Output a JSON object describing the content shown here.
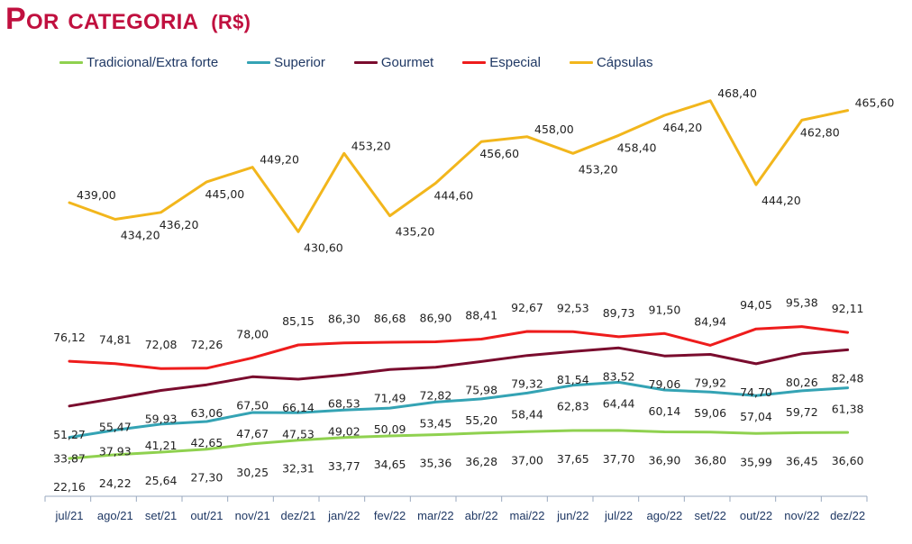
{
  "title": "Por categoria",
  "unit": "(R$)",
  "colors": {
    "title": "#c0103f",
    "axis": "#9aa9bf",
    "text": "#1f3864"
  },
  "chart_data": {
    "type": "line",
    "categories": [
      "jul/21",
      "ago/21",
      "set/21",
      "out/21",
      "nov/21",
      "dez/21",
      "jan/22",
      "fev/22",
      "mar/22",
      "abr/22",
      "mai/22",
      "jun/22",
      "jul/22",
      "ago/22",
      "set/22",
      "out/22",
      "nov/22",
      "dez/22"
    ],
    "legend_position": "top",
    "grid": false,
    "series": [
      {
        "name": "Tradicional/Extra forte",
        "color": "#8fd14f",
        "values": [
          22.16,
          24.22,
          25.64,
          27.3,
          30.25,
          32.31,
          33.77,
          34.65,
          35.36,
          36.28,
          37.0,
          37.65,
          37.7,
          36.9,
          36.8,
          35.99,
          36.45,
          36.6
        ],
        "labels": [
          "22,16",
          "24,22",
          "25,64",
          "27,30",
          "30,25",
          "32,31",
          "33,77",
          "34,65",
          "35,36",
          "36,28",
          "37,00",
          "37,65",
          "37,70",
          "36,90",
          "36,80",
          "35,99",
          "36,45",
          "36,60"
        ]
      },
      {
        "name": "Superior",
        "color": "#34a3b4",
        "values": [
          33.87,
          37.93,
          41.21,
          42.65,
          47.67,
          47.53,
          49.02,
          50.09,
          53.45,
          55.2,
          58.44,
          62.83,
          64.44,
          60.14,
          59.06,
          57.04,
          59.72,
          61.38
        ],
        "labels": [
          "33,87",
          "37,93",
          "41,21",
          "42,65",
          "47,67",
          "47,53",
          "49,02",
          "50,09",
          "53,45",
          "55,20",
          "58,44",
          "62,83",
          "64,44",
          "60,14",
          "59,06",
          "57,04",
          "59,72",
          "61,38"
        ]
      },
      {
        "name": "Gourmet",
        "color": "#7a0c2e",
        "values": [
          51.27,
          55.47,
          59.93,
          63.06,
          67.5,
          66.14,
          68.53,
          71.49,
          72.82,
          75.98,
          79.32,
          81.54,
          83.52,
          79.06,
          79.92,
          74.7,
          80.26,
          82.48
        ],
        "labels": [
          "51,27",
          "55,47",
          "59,93",
          "63,06",
          "67,50",
          "66,14",
          "68,53",
          "71,49",
          "72,82",
          "75,98",
          "79,32",
          "81,54",
          "83,52",
          "79,06",
          "79,92",
          "74,70",
          "80,26",
          "82,48"
        ]
      },
      {
        "name": "Especial",
        "color": "#ee1c1c",
        "values": [
          76.12,
          74.81,
          72.08,
          72.26,
          78.0,
          85.15,
          86.3,
          86.68,
          86.9,
          88.41,
          92.67,
          92.53,
          89.73,
          91.5,
          84.94,
          94.05,
          95.38,
          92.11
        ],
        "labels": [
          "76,12",
          "74,81",
          "72,08",
          "72,26",
          "78,00",
          "85,15",
          "86,30",
          "86,68",
          "86,90",
          "88,41",
          "92,67",
          "92,53",
          "89,73",
          "91,50",
          "84,94",
          "94,05",
          "95,38",
          "92,11"
        ]
      },
      {
        "name": "Cápsulas",
        "color": "#f2b61c",
        "values": [
          439.0,
          434.2,
          436.2,
          445.0,
          449.2,
          430.6,
          453.2,
          435.2,
          444.6,
          456.6,
          458.0,
          453.2,
          458.4,
          464.2,
          468.4,
          444.2,
          462.8,
          465.6
        ],
        "labels": [
          "439,00",
          "434,20",
          "436,20",
          "445,00",
          "449,20",
          "430,60",
          "453,20",
          "435,20",
          "444,60",
          "456,60",
          "458,00",
          "453,20",
          "458,40",
          "464,20",
          "468,40",
          "444,20",
          "462,80",
          "465,60"
        ]
      }
    ]
  }
}
